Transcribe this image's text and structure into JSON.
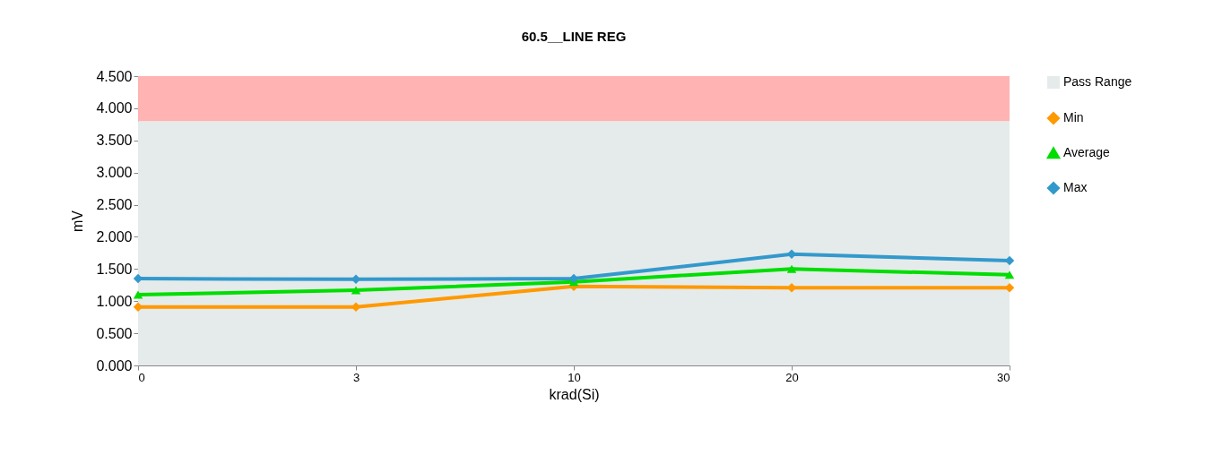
{
  "chart_data": {
    "type": "line",
    "title": "60.5__LINE REG",
    "xlabel": "krad(Si)",
    "ylabel": "mV",
    "categories": [
      "0",
      "3",
      "10",
      "20",
      "30"
    ],
    "series": [
      {
        "name": "Min",
        "color": "#ff9900",
        "marker": "diamond",
        "values": [
          0.91,
          0.91,
          1.23,
          1.21,
          1.21
        ]
      },
      {
        "name": "Average",
        "color": "#00dd00",
        "marker": "triangle",
        "values": [
          1.1,
          1.17,
          1.3,
          1.5,
          1.41
        ]
      },
      {
        "name": "Max",
        "color": "#3399cc",
        "marker": "diamond",
        "values": [
          1.35,
          1.34,
          1.35,
          1.73,
          1.63
        ]
      }
    ],
    "ylim": [
      0,
      4.5
    ],
    "yticks": [
      {
        "value": 0,
        "label": "0.000"
      },
      {
        "value": 0.5,
        "label": "0.500"
      },
      {
        "value": 1,
        "label": "1.000"
      },
      {
        "value": 1.5,
        "label": "1.500"
      },
      {
        "value": 2,
        "label": "2.000"
      },
      {
        "value": 2.5,
        "label": "2.500"
      },
      {
        "value": 3,
        "label": "3.000"
      },
      {
        "value": 3.5,
        "label": "3.500"
      },
      {
        "value": 4,
        "label": "4.000"
      },
      {
        "value": 4.5,
        "label": "4.500"
      }
    ],
    "bands": [
      {
        "axis": "y",
        "from": 0,
        "to": 3.8,
        "label": "Pass Range",
        "color": "#e5ebea"
      },
      {
        "axis": "y",
        "from": 3.8,
        "to": 4.5,
        "color": "#ffb3b3"
      }
    ],
    "grid": false,
    "legend": "right",
    "line_style": "solid"
  }
}
